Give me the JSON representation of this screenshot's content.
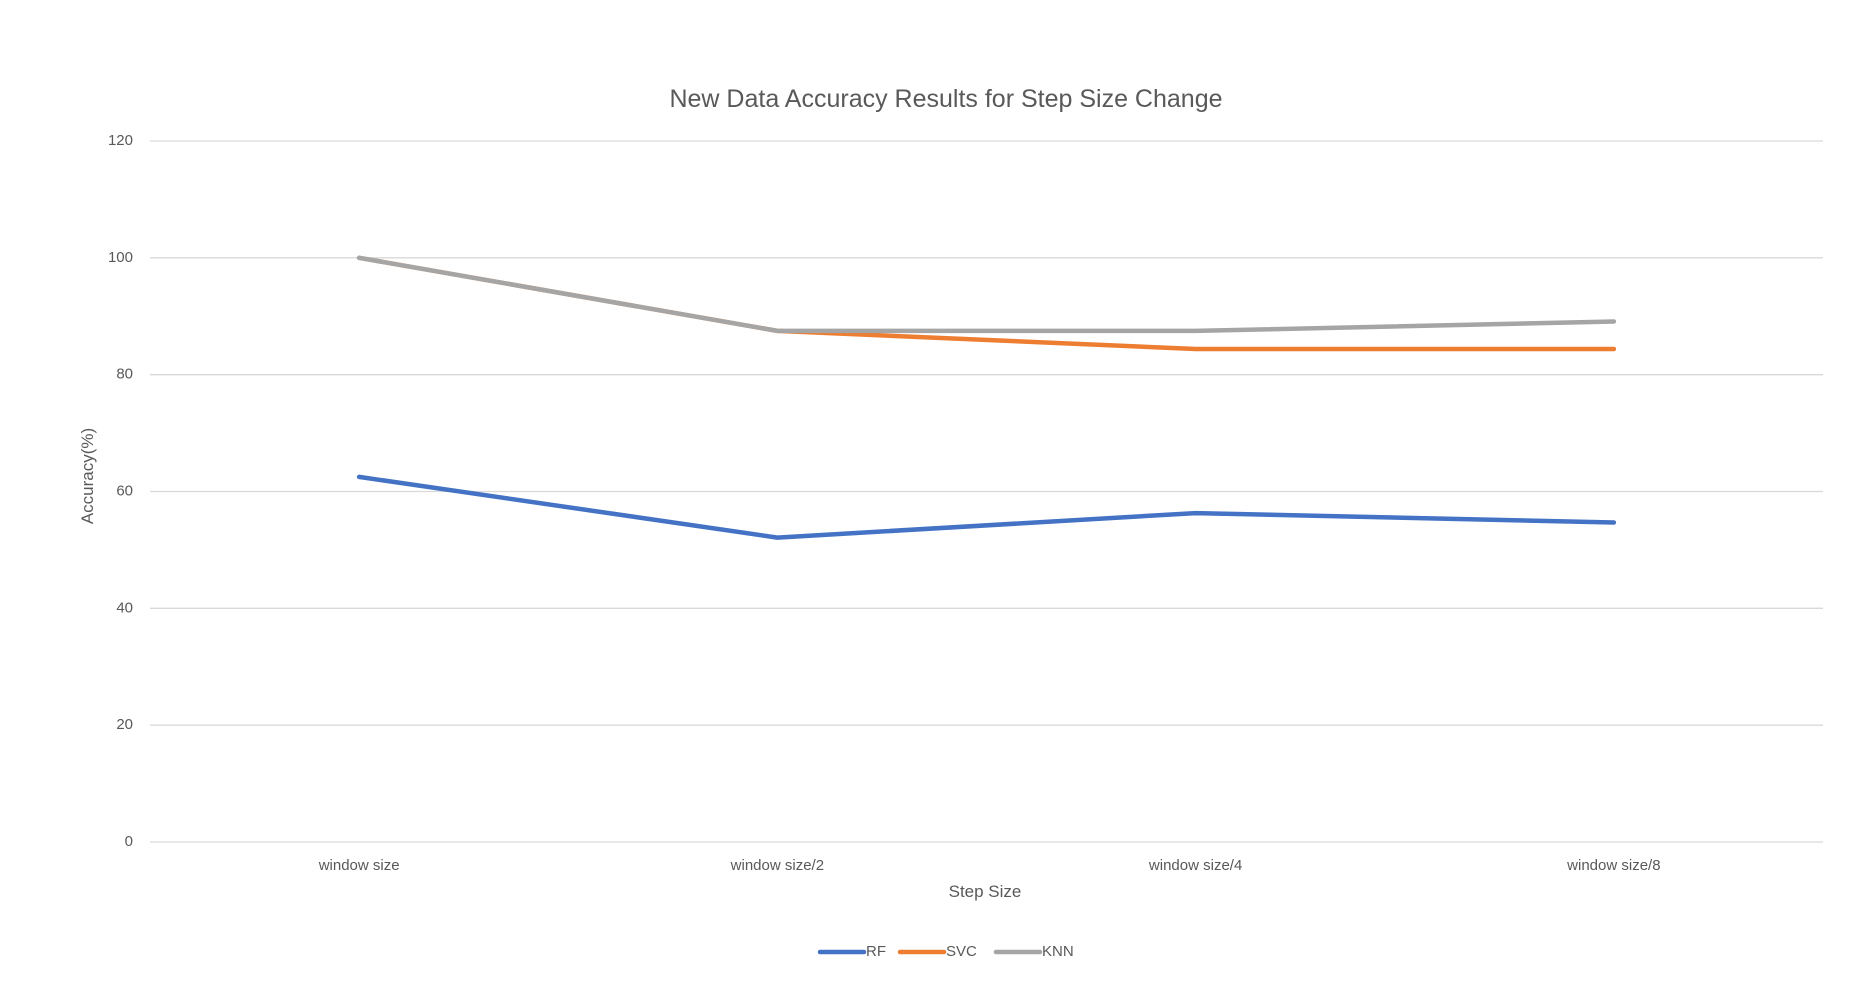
{
  "chart_data": {
    "type": "line",
    "title": "New Data Accuracy Results for Step Size Change",
    "xlabel": "Step Size",
    "ylabel": "Accuracy(%)",
    "categories": [
      "window size",
      "window size/2",
      "window size/4",
      "window size/8"
    ],
    "ylim": [
      0,
      120
    ],
    "yticks": [
      0,
      20,
      40,
      60,
      80,
      100,
      120
    ],
    "grid": true,
    "legend_position": "bottom",
    "series": [
      {
        "name": "RF",
        "color": "#4472c4",
        "values": [
          62.5,
          52.1,
          56.3,
          54.7
        ]
      },
      {
        "name": "SVC",
        "color": "#ed7d31",
        "values": [
          100,
          87.5,
          84.4,
          84.4
        ]
      },
      {
        "name": "KNN",
        "color": "#a5a5a5",
        "values": [
          100,
          87.5,
          87.5,
          89.1
        ]
      }
    ]
  }
}
